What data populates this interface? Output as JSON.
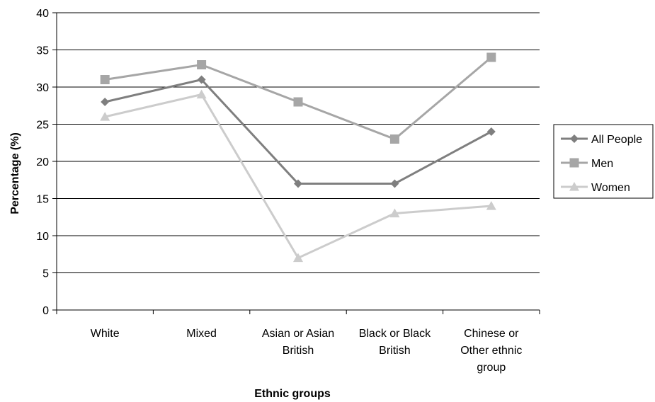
{
  "chart_data": {
    "type": "line",
    "title": "",
    "xlabel": "Ethnic groups",
    "ylabel": "Percentage (%)",
    "ylim": [
      0,
      40
    ],
    "y_ticks": [
      "0",
      "5",
      "10",
      "15",
      "20",
      "25",
      "30",
      "35",
      "40"
    ],
    "grid": "horizontal",
    "legend_position": "right",
    "categories": [
      [
        "White"
      ],
      [
        "Mixed"
      ],
      [
        "Asian or Asian",
        "British"
      ],
      [
        "Black or Black",
        "British"
      ],
      [
        "Chinese or",
        "Other ethnic",
        "group"
      ]
    ],
    "series": [
      {
        "name": "All People",
        "values": [
          28,
          31,
          17,
          17,
          24
        ],
        "color": "#7f7f7f",
        "marker": "diamond"
      },
      {
        "name": "Men",
        "values": [
          31,
          33,
          28,
          23,
          34
        ],
        "color": "#a6a6a6",
        "marker": "square"
      },
      {
        "name": "Women",
        "values": [
          26,
          29,
          7,
          13,
          14
        ],
        "color": "#cccccc",
        "marker": "triangle"
      }
    ]
  }
}
